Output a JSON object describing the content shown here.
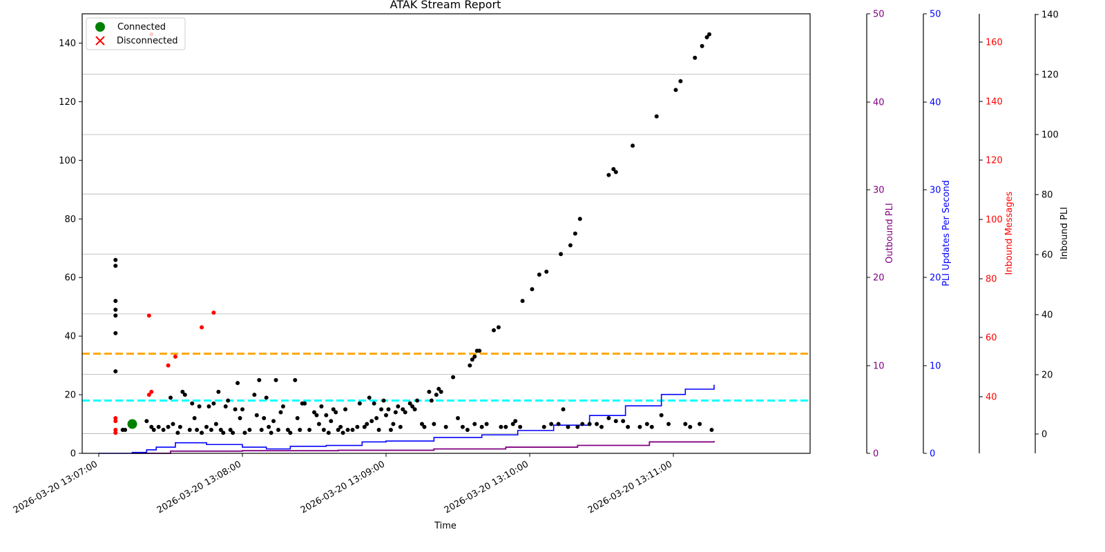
{
  "chart_data": {
    "type": "scatter",
    "title": "ATAK Stream Report",
    "xlabel": "Time",
    "x_ticks": [
      "2026-03-20 13:07:00",
      "2026-03-20 13:08:00",
      "2026-03-20 13:09:00",
      "2026-03-20 13:10:00",
      "2026-03-20 13:11:00"
    ],
    "ylim": [
      0,
      150
    ],
    "y_ticks": [
      0,
      20,
      40,
      60,
      80,
      100,
      120,
      140
    ],
    "grid": "horizontal",
    "legend": {
      "placement": "top-left",
      "entries": [
        {
          "label": "Connected",
          "marker": "circle",
          "color": "#008000"
        },
        {
          "label": "Disconnected",
          "marker": "x",
          "color": "#ff0000"
        }
      ]
    },
    "thresholds": [
      {
        "y": 34,
        "color": "#ffa500"
      },
      {
        "y": 18,
        "color": "#00ffff"
      }
    ],
    "colors": {
      "points": "#000000",
      "red_points": "#ff0000",
      "pli_rate": "#0000ff",
      "outbound": "#800080",
      "connected": "#008000"
    },
    "right_axes": [
      {
        "label": "Outbound PLI",
        "color": "#800080",
        "ticks": [
          "0",
          "10",
          "20",
          "30",
          "40",
          "50"
        ]
      },
      {
        "label": "PLI Updates Per Second",
        "color": "#0000ff",
        "ticks": [
          "0",
          "10",
          "20",
          "30",
          "40",
          "50"
        ]
      },
      {
        "label": "Inbound Messages",
        "color": "#ff0000",
        "ticks": [
          "40",
          "60",
          "80",
          "100",
          "120",
          "140",
          "160"
        ]
      },
      {
        "label": "Inbound PLI",
        "color": "#000000",
        "ticks": [
          "0",
          "20",
          "40",
          "60",
          "80",
          "100",
          "120",
          "140"
        ]
      }
    ],
    "connected_points": [
      {
        "t": "13:07:14",
        "y": 10
      }
    ],
    "red_points": [
      {
        "t": "13:07:07",
        "y": 12
      },
      {
        "t": "13:07:07",
        "y": 11
      },
      {
        "t": "13:07:07",
        "y": 8
      },
      {
        "t": "13:07:07",
        "y": 7
      },
      {
        "t": "13:07:21",
        "y": 47
      },
      {
        "t": "13:07:21",
        "y": 20
      },
      {
        "t": "13:07:22",
        "y": 21
      },
      {
        "t": "13:07:22",
        "y": 143
      },
      {
        "t": "13:07:29",
        "y": 30
      },
      {
        "t": "13:07:32",
        "y": 33
      },
      {
        "t": "13:07:43",
        "y": 43
      },
      {
        "t": "13:07:48",
        "y": 48
      }
    ],
    "black_points": [
      {
        "t": "13:07:07",
        "y": 66
      },
      {
        "t": "13:07:07",
        "y": 64
      },
      {
        "t": "13:07:07",
        "y": 52
      },
      {
        "t": "13:07:07",
        "y": 49
      },
      {
        "t": "13:07:07",
        "y": 47
      },
      {
        "t": "13:07:07",
        "y": 41
      },
      {
        "t": "13:07:07",
        "y": 28
      },
      {
        "t": "13:07:10",
        "y": 8
      },
      {
        "t": "13:07:11",
        "y": 8
      },
      {
        "t": "13:07:20",
        "y": 11
      },
      {
        "t": "13:07:22",
        "y": 9
      },
      {
        "t": "13:07:23",
        "y": 8
      },
      {
        "t": "13:07:25",
        "y": 9
      },
      {
        "t": "13:07:27",
        "y": 8
      },
      {
        "t": "13:07:29",
        "y": 9
      },
      {
        "t": "13:07:30",
        "y": 19
      },
      {
        "t": "13:07:31",
        "y": 10
      },
      {
        "t": "13:07:33",
        "y": 7
      },
      {
        "t": "13:07:34",
        "y": 9
      },
      {
        "t": "13:07:35",
        "y": 21
      },
      {
        "t": "13:07:36",
        "y": 20
      },
      {
        "t": "13:07:38",
        "y": 8
      },
      {
        "t": "13:07:39",
        "y": 17
      },
      {
        "t": "13:07:40",
        "y": 12
      },
      {
        "t": "13:07:41",
        "y": 8
      },
      {
        "t": "13:07:42",
        "y": 16
      },
      {
        "t": "13:07:43",
        "y": 7
      },
      {
        "t": "13:07:45",
        "y": 9
      },
      {
        "t": "13:07:46",
        "y": 16
      },
      {
        "t": "13:07:47",
        "y": 8
      },
      {
        "t": "13:07:48",
        "y": 17
      },
      {
        "t": "13:07:49",
        "y": 10
      },
      {
        "t": "13:07:50",
        "y": 21
      },
      {
        "t": "13:07:51",
        "y": 8
      },
      {
        "t": "13:07:52",
        "y": 7
      },
      {
        "t": "13:07:53",
        "y": 16
      },
      {
        "t": "13:07:54",
        "y": 18
      },
      {
        "t": "13:07:55",
        "y": 8
      },
      {
        "t": "13:07:56",
        "y": 7
      },
      {
        "t": "13:07:57",
        "y": 15
      },
      {
        "t": "13:07:58",
        "y": 24
      },
      {
        "t": "13:07:59",
        "y": 12
      },
      {
        "t": "13:08:00",
        "y": 15
      },
      {
        "t": "13:08:01",
        "y": 7
      },
      {
        "t": "13:08:03",
        "y": 8
      },
      {
        "t": "13:08:05",
        "y": 20
      },
      {
        "t": "13:08:06",
        "y": 13
      },
      {
        "t": "13:08:07",
        "y": 25
      },
      {
        "t": "13:08:08",
        "y": 8
      },
      {
        "t": "13:08:09",
        "y": 12
      },
      {
        "t": "13:08:10",
        "y": 19
      },
      {
        "t": "13:08:11",
        "y": 9
      },
      {
        "t": "13:08:12",
        "y": 7
      },
      {
        "t": "13:08:13",
        "y": 11
      },
      {
        "t": "13:08:14",
        "y": 25
      },
      {
        "t": "13:08:15",
        "y": 8
      },
      {
        "t": "13:08:16",
        "y": 14
      },
      {
        "t": "13:08:17",
        "y": 16
      },
      {
        "t": "13:08:19",
        "y": 8
      },
      {
        "t": "13:08:20",
        "y": 7
      },
      {
        "t": "13:08:22",
        "y": 25
      },
      {
        "t": "13:08:23",
        "y": 12
      },
      {
        "t": "13:08:24",
        "y": 8
      },
      {
        "t": "13:08:25",
        "y": 17
      },
      {
        "t": "13:08:26",
        "y": 17
      },
      {
        "t": "13:08:28",
        "y": 8
      },
      {
        "t": "13:08:30",
        "y": 14
      },
      {
        "t": "13:08:31",
        "y": 13
      },
      {
        "t": "13:08:32",
        "y": 10
      },
      {
        "t": "13:08:33",
        "y": 16
      },
      {
        "t": "13:08:34",
        "y": 8
      },
      {
        "t": "13:08:35",
        "y": 13
      },
      {
        "t": "13:08:36",
        "y": 7
      },
      {
        "t": "13:08:37",
        "y": 11
      },
      {
        "t": "13:08:38",
        "y": 15
      },
      {
        "t": "13:08:39",
        "y": 14
      },
      {
        "t": "13:08:40",
        "y": 8
      },
      {
        "t": "13:08:41",
        "y": 9
      },
      {
        "t": "13:08:42",
        "y": 7
      },
      {
        "t": "13:08:43",
        "y": 15
      },
      {
        "t": "13:08:44",
        "y": 8
      },
      {
        "t": "13:08:46",
        "y": 8
      },
      {
        "t": "13:08:48",
        "y": 9
      },
      {
        "t": "13:08:49",
        "y": 17
      },
      {
        "t": "13:08:51",
        "y": 9
      },
      {
        "t": "13:08:52",
        "y": 10
      },
      {
        "t": "13:08:53",
        "y": 19
      },
      {
        "t": "13:08:54",
        "y": 11
      },
      {
        "t": "13:08:55",
        "y": 17
      },
      {
        "t": "13:08:56",
        "y": 12
      },
      {
        "t": "13:08:57",
        "y": 8
      },
      {
        "t": "13:08:58",
        "y": 15
      },
      {
        "t": "13:08:59",
        "y": 18
      },
      {
        "t": "13:09:00",
        "y": 13
      },
      {
        "t": "13:09:01",
        "y": 15
      },
      {
        "t": "13:09:02",
        "y": 8
      },
      {
        "t": "13:09:03",
        "y": 10
      },
      {
        "t": "13:09:04",
        "y": 14
      },
      {
        "t": "13:09:05",
        "y": 16
      },
      {
        "t": "13:09:06",
        "y": 9
      },
      {
        "t": "13:09:07",
        "y": 15
      },
      {
        "t": "13:09:08",
        "y": 14
      },
      {
        "t": "13:09:10",
        "y": 17
      },
      {
        "t": "13:09:11",
        "y": 16
      },
      {
        "t": "13:09:12",
        "y": 15
      },
      {
        "t": "13:09:13",
        "y": 18
      },
      {
        "t": "13:09:15",
        "y": 10
      },
      {
        "t": "13:09:16",
        "y": 9
      },
      {
        "t": "13:09:18",
        "y": 21
      },
      {
        "t": "13:09:19",
        "y": 18
      },
      {
        "t": "13:09:20",
        "y": 10
      },
      {
        "t": "13:09:21",
        "y": 20
      },
      {
        "t": "13:09:22",
        "y": 22
      },
      {
        "t": "13:09:23",
        "y": 21
      },
      {
        "t": "13:09:25",
        "y": 9
      },
      {
        "t": "13:09:28",
        "y": 26
      },
      {
        "t": "13:09:30",
        "y": 12
      },
      {
        "t": "13:09:32",
        "y": 9
      },
      {
        "t": "13:09:34",
        "y": 8
      },
      {
        "t": "13:09:35",
        "y": 30
      },
      {
        "t": "13:09:36",
        "y": 32
      },
      {
        "t": "13:09:37",
        "y": 33
      },
      {
        "t": "13:09:38",
        "y": 35
      },
      {
        "t": "13:09:39",
        "y": 35
      },
      {
        "t": "13:09:37",
        "y": 10
      },
      {
        "t": "13:09:40",
        "y": 9
      },
      {
        "t": "13:09:42",
        "y": 10
      },
      {
        "t": "13:09:45",
        "y": 42
      },
      {
        "t": "13:09:47",
        "y": 43
      },
      {
        "t": "13:09:48",
        "y": 9
      },
      {
        "t": "13:09:50",
        "y": 9
      },
      {
        "t": "13:09:53",
        "y": 10
      },
      {
        "t": "13:09:54",
        "y": 11
      },
      {
        "t": "13:09:56",
        "y": 9
      },
      {
        "t": "13:09:57",
        "y": 52
      },
      {
        "t": "13:10:01",
        "y": 56
      },
      {
        "t": "13:10:04",
        "y": 61
      },
      {
        "t": "13:10:06",
        "y": 9
      },
      {
        "t": "13:10:07",
        "y": 62
      },
      {
        "t": "13:10:09",
        "y": 10
      },
      {
        "t": "13:10:12",
        "y": 10
      },
      {
        "t": "13:10:13",
        "y": 68
      },
      {
        "t": "13:10:14",
        "y": 15
      },
      {
        "t": "13:10:16",
        "y": 9
      },
      {
        "t": "13:10:17",
        "y": 71
      },
      {
        "t": "13:10:19",
        "y": 75
      },
      {
        "t": "13:10:20",
        "y": 9
      },
      {
        "t": "13:10:21",
        "y": 80
      },
      {
        "t": "13:10:22",
        "y": 10
      },
      {
        "t": "13:10:25",
        "y": 10
      },
      {
        "t": "13:10:28",
        "y": 10
      },
      {
        "t": "13:10:30",
        "y": 9
      },
      {
        "t": "13:10:33",
        "y": 12
      },
      {
        "t": "13:10:33",
        "y": 95
      },
      {
        "t": "13:10:35",
        "y": 97
      },
      {
        "t": "13:10:36",
        "y": 96
      },
      {
        "t": "13:10:36",
        "y": 11
      },
      {
        "t": "13:10:39",
        "y": 11
      },
      {
        "t": "13:10:41",
        "y": 9
      },
      {
        "t": "13:10:43",
        "y": 105
      },
      {
        "t": "13:10:46",
        "y": 9
      },
      {
        "t": "13:10:49",
        "y": 10
      },
      {
        "t": "13:10:51",
        "y": 9
      },
      {
        "t": "13:10:53",
        "y": 115
      },
      {
        "t": "13:10:55",
        "y": 13
      },
      {
        "t": "13:10:58",
        "y": 10
      },
      {
        "t": "13:11:01",
        "y": 124
      },
      {
        "t": "13:11:03",
        "y": 127
      },
      {
        "t": "13:11:05",
        "y": 10
      },
      {
        "t": "13:11:07",
        "y": 9
      },
      {
        "t": "13:11:09",
        "y": 135
      },
      {
        "t": "13:11:11",
        "y": 10
      },
      {
        "t": "13:11:12",
        "y": 139
      },
      {
        "t": "13:11:14",
        "y": 142
      },
      {
        "t": "13:11:15",
        "y": 143
      },
      {
        "t": "13:11:16",
        "y": 8
      }
    ],
    "pli_rate_line": [
      {
        "t": "13:07:00",
        "y": 0
      },
      {
        "t": "13:07:10",
        "y": 0
      },
      {
        "t": "13:07:14",
        "y": 0.1
      },
      {
        "t": "13:07:20",
        "y": 0.4
      },
      {
        "t": "13:07:24",
        "y": 0.7
      },
      {
        "t": "13:07:30",
        "y": 0.7
      },
      {
        "t": "13:07:32",
        "y": 1.2
      },
      {
        "t": "13:07:45",
        "y": 1
      },
      {
        "t": "13:08:00",
        "y": 0.7
      },
      {
        "t": "13:08:10",
        "y": 0.5
      },
      {
        "t": "13:08:20",
        "y": 0.8
      },
      {
        "t": "13:08:35",
        "y": 0.9
      },
      {
        "t": "13:08:50",
        "y": 1.3
      },
      {
        "t": "13:09:00",
        "y": 1.4
      },
      {
        "t": "13:09:20",
        "y": 1.8
      },
      {
        "t": "13:09:40",
        "y": 2.1
      },
      {
        "t": "13:09:55",
        "y": 2.6
      },
      {
        "t": "13:10:10",
        "y": 3.2
      },
      {
        "t": "13:10:25",
        "y": 4.3
      },
      {
        "t": "13:10:40",
        "y": 5.4
      },
      {
        "t": "13:10:55",
        "y": 6.7
      },
      {
        "t": "13:11:05",
        "y": 7.3
      },
      {
        "t": "13:11:17",
        "y": 7.8
      }
    ],
    "outbound_line": [
      {
        "t": "13:07:14",
        "y": 0
      },
      {
        "t": "13:07:30",
        "y": 0.25
      },
      {
        "t": "13:08:00",
        "y": 0.3
      },
      {
        "t": "13:08:40",
        "y": 0.35
      },
      {
        "t": "13:09:20",
        "y": 0.5
      },
      {
        "t": "13:09:50",
        "y": 0.7
      },
      {
        "t": "13:10:20",
        "y": 0.9
      },
      {
        "t": "13:10:50",
        "y": 1.3
      },
      {
        "t": "13:11:17",
        "y": 1.4
      }
    ]
  }
}
